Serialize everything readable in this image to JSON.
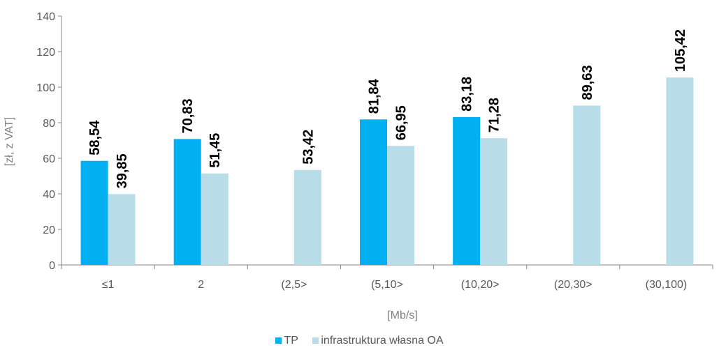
{
  "chart_data": {
    "type": "bar",
    "categories": [
      "≤1",
      "2",
      "(2,5>",
      "(5,10>",
      "(10,20>",
      "(20,30>",
      "(30,100)"
    ],
    "series": [
      {
        "name": "TP",
        "values": [
          58.54,
          70.83,
          null,
          81.84,
          83.18,
          null,
          null
        ],
        "labels": [
          "58,54",
          "70,83",
          null,
          "81,84",
          "83,18",
          null,
          null
        ]
      },
      {
        "name": "infrastruktura własna OA",
        "values": [
          39.85,
          51.45,
          53.42,
          66.95,
          71.28,
          89.63,
          105.42
        ],
        "labels": [
          "39,85",
          "51,45",
          "53,42",
          "66,95",
          "71,28",
          "89,63",
          "105,42"
        ]
      }
    ],
    "yticks": [
      "0",
      "20",
      "40",
      "60",
      "80",
      "100",
      "120",
      "140"
    ],
    "ylim": [
      0,
      140
    ],
    "xlabel": "[Mb/s]",
    "ylabel": "[zł, z VAT]",
    "legend_position": "bottom",
    "grid": false,
    "colors": {
      "TP": "#00b0f0",
      "infrastruktura własna OA": "#b7dde8"
    }
  }
}
